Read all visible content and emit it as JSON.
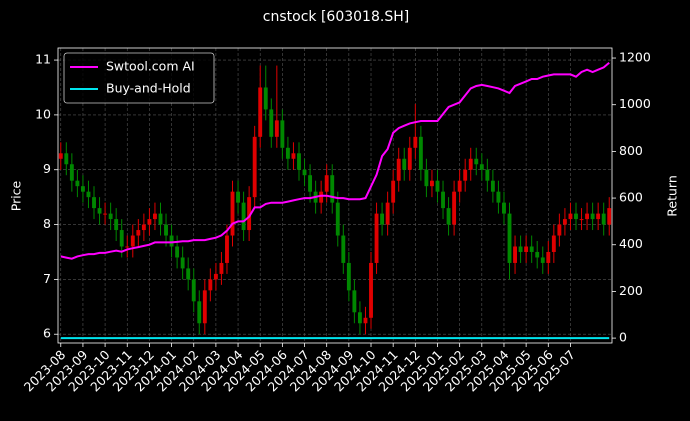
{
  "chart_data": {
    "type": "candlestick",
    "title": "cnstock [603018.SH]",
    "ylabel": "Price",
    "y2label": "Return",
    "categories": [
      "2023-08",
      null,
      null,
      null,
      "2023-09",
      null,
      null,
      null,
      "2023-10",
      null,
      null,
      null,
      "2023-11",
      null,
      null,
      null,
      "2023-12",
      null,
      null,
      null,
      "2024-01",
      null,
      null,
      null,
      "2024-02",
      null,
      null,
      null,
      "2024-03",
      null,
      null,
      null,
      "2024-04",
      null,
      null,
      null,
      "2024-05",
      null,
      null,
      null,
      "2024-06",
      null,
      null,
      null,
      "2024-07",
      null,
      null,
      null,
      "2024-08",
      null,
      null,
      null,
      "2024-09",
      null,
      null,
      null,
      "2024-10",
      null,
      null,
      null,
      "2024-11",
      null,
      null,
      null,
      "2024-12",
      null,
      null,
      null,
      "2025-01",
      null,
      null,
      null,
      "2025-02",
      null,
      null,
      null,
      "2025-03",
      null,
      null,
      null,
      "2025-04",
      null,
      null,
      null,
      "2025-05",
      null,
      null,
      null,
      "2025-06",
      null,
      null,
      null,
      "2025-07",
      null,
      null,
      null,
      null,
      null,
      null,
      null
    ],
    "open": [
      9.2,
      9.3,
      9.1,
      8.8,
      8.7,
      8.6,
      8.5,
      8.3,
      8.2,
      8.2,
      8.1,
      7.9,
      7.6,
      7.6,
      7.8,
      7.9,
      8.0,
      8.1,
      8.2,
      8.0,
      7.8,
      7.6,
      7.4,
      7.2,
      7.0,
      6.6,
      6.2,
      6.8,
      7.0,
      7.1,
      7.3,
      7.8,
      8.6,
      8.4,
      7.9,
      8.5,
      9.6,
      10.5,
      10.1,
      9.6,
      9.9,
      9.4,
      9.2,
      9.3,
      9.0,
      8.9,
      8.6,
      8.4,
      8.6,
      8.9,
      8.4,
      7.8,
      7.3,
      6.8,
      6.4,
      6.2,
      6.3,
      7.3,
      8.2,
      8.0,
      8.4,
      8.8,
      9.2,
      9.0,
      9.4,
      9.6,
      9.0,
      8.7,
      8.8,
      8.6,
      8.3,
      8.0,
      8.6,
      8.8,
      9.0,
      9.2,
      9.1,
      9.0,
      8.8,
      8.6,
      8.4,
      8.2,
      7.3,
      7.6,
      7.5,
      7.6,
      7.5,
      7.4,
      7.3,
      7.5,
      7.8,
      8.0,
      8.1,
      8.2,
      8.1,
      8.1,
      8.2,
      8.1,
      8.2,
      8.0
    ],
    "high": [
      9.5,
      9.5,
      9.3,
      9.0,
      8.9,
      8.8,
      8.7,
      8.5,
      8.4,
      8.4,
      8.3,
      8.1,
      7.8,
      8.0,
      8.1,
      8.2,
      8.3,
      8.4,
      8.4,
      8.2,
      8.0,
      7.8,
      7.6,
      7.4,
      7.2,
      6.8,
      7.0,
      7.2,
      7.3,
      7.5,
      8.0,
      8.8,
      8.8,
      8.6,
      8.7,
      9.8,
      10.9,
      10.9,
      10.3,
      10.9,
      10.1,
      9.6,
      9.5,
      9.5,
      9.2,
      9.1,
      8.8,
      8.8,
      9.1,
      9.1,
      8.6,
      8.0,
      7.5,
      7.0,
      6.6,
      6.5,
      7.5,
      8.4,
      8.4,
      8.6,
      9.0,
      9.4,
      9.4,
      9.6,
      10.2,
      9.8,
      9.2,
      9.0,
      9.0,
      8.8,
      8.5,
      8.8,
      9.0,
      9.2,
      9.4,
      9.4,
      9.3,
      9.2,
      9.0,
      8.8,
      8.6,
      8.4,
      7.8,
      7.8,
      7.8,
      7.8,
      7.7,
      7.6,
      7.7,
      8.0,
      8.2,
      8.3,
      8.4,
      8.4,
      8.3,
      8.4,
      8.4,
      8.4,
      8.4,
      8.5
    ],
    "low": [
      9.0,
      8.9,
      8.6,
      8.5,
      8.4,
      8.3,
      8.1,
      8.0,
      8.0,
      7.9,
      7.7,
      7.4,
      7.4,
      7.4,
      7.6,
      7.7,
      7.8,
      7.9,
      7.8,
      7.6,
      7.4,
      7.2,
      7.0,
      6.8,
      6.4,
      6.0,
      6.0,
      6.6,
      6.8,
      6.9,
      7.1,
      7.6,
      8.2,
      7.7,
      7.7,
      8.3,
      9.4,
      9.9,
      9.4,
      9.4,
      9.2,
      9.0,
      9.0,
      8.8,
      8.7,
      8.4,
      8.2,
      8.2,
      8.4,
      8.2,
      7.6,
      7.1,
      6.6,
      6.2,
      6.0,
      6.0,
      6.1,
      7.1,
      7.8,
      7.8,
      8.2,
      8.6,
      8.8,
      8.8,
      9.2,
      8.8,
      8.5,
      8.5,
      8.4,
      8.1,
      7.8,
      7.8,
      8.4,
      8.6,
      8.8,
      8.9,
      8.8,
      8.6,
      8.4,
      8.2,
      8.0,
      7.0,
      7.1,
      7.3,
      7.3,
      7.3,
      7.2,
      7.1,
      7.1,
      7.3,
      7.6,
      7.8,
      7.9,
      7.9,
      7.9,
      7.9,
      7.9,
      7.9,
      7.8,
      7.8
    ],
    "close": [
      9.3,
      9.1,
      8.8,
      8.7,
      8.6,
      8.5,
      8.3,
      8.2,
      8.2,
      8.1,
      7.9,
      7.6,
      7.6,
      7.8,
      7.9,
      8.0,
      8.1,
      8.2,
      8.0,
      7.8,
      7.6,
      7.4,
      7.2,
      7.0,
      6.6,
      6.2,
      6.8,
      7.0,
      7.1,
      7.3,
      7.8,
      8.6,
      8.4,
      7.9,
      8.5,
      9.6,
      10.5,
      10.1,
      9.6,
      9.9,
      9.4,
      9.2,
      9.3,
      9.0,
      8.9,
      8.6,
      8.4,
      8.6,
      8.9,
      8.4,
      7.8,
      7.3,
      6.8,
      6.4,
      6.2,
      6.3,
      7.3,
      8.2,
      8.0,
      8.4,
      8.8,
      9.2,
      9.0,
      9.4,
      9.6,
      9.0,
      8.7,
      8.8,
      8.6,
      8.3,
      8.0,
      8.6,
      8.8,
      9.0,
      9.2,
      9.1,
      9.0,
      8.8,
      8.6,
      8.4,
      8.2,
      7.3,
      7.6,
      7.5,
      7.6,
      7.5,
      7.4,
      7.3,
      7.5,
      7.8,
      8.0,
      8.1,
      8.2,
      8.1,
      8.1,
      8.2,
      8.1,
      8.2,
      8.0,
      8.3
    ],
    "up_color": "#e00000",
    "down_color": "#008800",
    "series": [
      {
        "name": "Swtool.com AI",
        "color": "#ff00ff",
        "axis": "y2",
        "values": [
          350,
          345,
          340,
          350,
          355,
          360,
          360,
          365,
          365,
          370,
          375,
          370,
          380,
          385,
          390,
          395,
          400,
          410,
          410,
          410,
          410,
          412,
          415,
          415,
          420,
          420,
          420,
          425,
          430,
          440,
          460,
          490,
          500,
          500,
          520,
          560,
          560,
          575,
          580,
          580,
          580,
          585,
          590,
          595,
          600,
          600,
          605,
          610,
          610,
          605,
          600,
          600,
          595,
          595,
          595,
          600,
          650,
          700,
          780,
          810,
          880,
          900,
          910,
          920,
          925,
          930,
          930,
          930,
          930,
          960,
          990,
          1000,
          1010,
          1040,
          1070,
          1080,
          1085,
          1080,
          1075,
          1070,
          1060,
          1050,
          1080,
          1090,
          1100,
          1110,
          1110,
          1120,
          1125,
          1130,
          1130,
          1130,
          1130,
          1120,
          1140,
          1150,
          1140,
          1150,
          1160,
          1180
        ]
      },
      {
        "name": "Buy-and-Hold",
        "color": "#00e5ee",
        "axis": "y2",
        "values": [
          0,
          0,
          0,
          0,
          0,
          0,
          0,
          0,
          0,
          0,
          0,
          0,
          0,
          0,
          0,
          0,
          0,
          0,
          0,
          0,
          0,
          0,
          0,
          0,
          0,
          0,
          0,
          0,
          0,
          0,
          0,
          0,
          0,
          0,
          0,
          0,
          0,
          0,
          0,
          0,
          0,
          0,
          0,
          0,
          0,
          0,
          0,
          0,
          0,
          0,
          0,
          0,
          0,
          0,
          0,
          0,
          0,
          0,
          0,
          0,
          0,
          0,
          0,
          0,
          0,
          0,
          0,
          0,
          0,
          0,
          0,
          0,
          0,
          0,
          0,
          0,
          0,
          0,
          0,
          0,
          0,
          0,
          0,
          0,
          0,
          0,
          0,
          0,
          0,
          0,
          0,
          0,
          0,
          0,
          0,
          0,
          0,
          0,
          0,
          0
        ]
      }
    ],
    "ylim": [
      5.84,
      11.22
    ],
    "yticks": [
      6,
      7,
      8,
      9,
      10,
      11
    ],
    "y2lim": [
      -21,
      1243
    ],
    "y2ticks": [
      0,
      200,
      400,
      600,
      800,
      1000,
      1200
    ],
    "grid": true,
    "legend": "upper left"
  }
}
